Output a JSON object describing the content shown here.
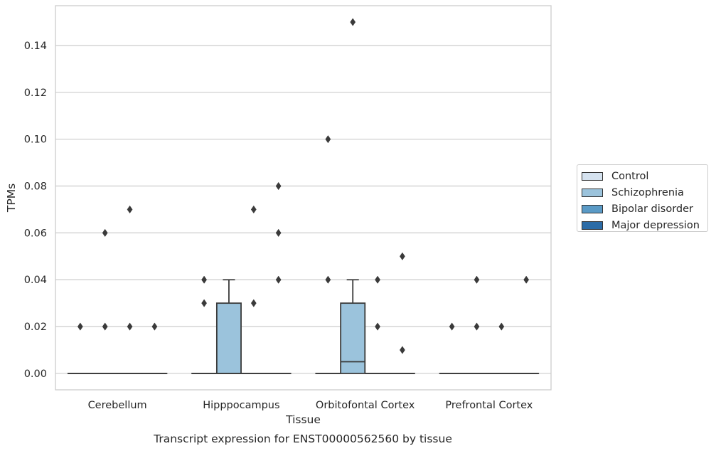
{
  "chart_data": {
    "type": "box",
    "title": "",
    "xlabel": "Tissue",
    "ylabel": "TPMs",
    "caption": "Transcript expression for ENST00000562560 by tissue",
    "categories": [
      "Cerebellum",
      "Hipppocampus",
      "Orbitofontal Cortex",
      "Prefrontal Cortex"
    ],
    "y_ticks": [
      "0.00",
      "0.02",
      "0.04",
      "0.06",
      "0.08",
      "0.10",
      "0.12",
      "0.14"
    ],
    "ylim": [
      -0.007,
      0.157
    ],
    "grid": "horizontal",
    "legend_position": "right",
    "series": [
      {
        "name": "Control",
        "color": "#d5e2ef",
        "boxes": [
          {
            "category": "Cerebellum",
            "q1": 0,
            "median": 0,
            "q3": 0,
            "whisker_low": 0,
            "whisker_high": 0,
            "outliers": [
              0.02
            ]
          },
          {
            "category": "Hipppocampus",
            "q1": 0,
            "median": 0,
            "q3": 0,
            "whisker_low": 0,
            "whisker_high": 0,
            "outliers": [
              0.03,
              0.04
            ]
          },
          {
            "category": "Orbitofontal Cortex",
            "q1": 0,
            "median": 0,
            "q3": 0,
            "whisker_low": 0,
            "whisker_high": 0,
            "outliers": [
              0.04,
              0.1
            ]
          },
          {
            "category": "Prefrontal Cortex",
            "q1": 0,
            "median": 0,
            "q3": 0,
            "whisker_low": 0,
            "whisker_high": 0,
            "outliers": [
              0.02
            ]
          }
        ]
      },
      {
        "name": "Schizophrenia",
        "color": "#9bc3dc",
        "boxes": [
          {
            "category": "Cerebellum",
            "q1": 0,
            "median": 0,
            "q3": 0,
            "whisker_low": 0,
            "whisker_high": 0,
            "outliers": [
              0.02,
              0.06
            ]
          },
          {
            "category": "Hipppocampus",
            "q1": 0,
            "median": 0,
            "q3": 0.03,
            "whisker_low": 0,
            "whisker_high": 0.04,
            "outliers": []
          },
          {
            "category": "Orbitofontal Cortex",
            "q1": 0,
            "median": 0.005,
            "q3": 0.03,
            "whisker_low": 0,
            "whisker_high": 0.04,
            "outliers": [
              0.15
            ]
          },
          {
            "category": "Prefrontal Cortex",
            "q1": 0,
            "median": 0,
            "q3": 0,
            "whisker_low": 0,
            "whisker_high": 0,
            "outliers": [
              0.02,
              0.04
            ]
          }
        ]
      },
      {
        "name": "Bipolar disorder",
        "color": "#5a9ac6",
        "boxes": [
          {
            "category": "Cerebellum",
            "q1": 0,
            "median": 0,
            "q3": 0,
            "whisker_low": 0,
            "whisker_high": 0,
            "outliers": [
              0.02,
              0.07
            ]
          },
          {
            "category": "Hipppocampus",
            "q1": 0,
            "median": 0,
            "q3": 0,
            "whisker_low": 0,
            "whisker_high": 0,
            "outliers": [
              0.03,
              0.07
            ]
          },
          {
            "category": "Orbitofontal Cortex",
            "q1": 0,
            "median": 0,
            "q3": 0,
            "whisker_low": 0,
            "whisker_high": 0,
            "outliers": [
              0.02,
              0.04
            ]
          },
          {
            "category": "Prefrontal Cortex",
            "q1": 0,
            "median": 0,
            "q3": 0,
            "whisker_low": 0,
            "whisker_high": 0,
            "outliers": [
              0.02
            ]
          }
        ]
      },
      {
        "name": "Major depression",
        "color": "#2c6ca7",
        "boxes": [
          {
            "category": "Cerebellum",
            "q1": 0,
            "median": 0,
            "q3": 0,
            "whisker_low": 0,
            "whisker_high": 0,
            "outliers": [
              0.02
            ]
          },
          {
            "category": "Hipppocampus",
            "q1": 0,
            "median": 0,
            "q3": 0,
            "whisker_low": 0,
            "whisker_high": 0,
            "outliers": [
              0.04,
              0.06,
              0.08
            ]
          },
          {
            "category": "Orbitofontal Cortex",
            "q1": 0,
            "median": 0,
            "q3": 0,
            "whisker_low": 0,
            "whisker_high": 0,
            "outliers": [
              0.01,
              0.05
            ]
          },
          {
            "category": "Prefrontal Cortex",
            "q1": 0,
            "median": 0,
            "q3": 0,
            "whisker_low": 0,
            "whisker_high": 0,
            "outliers": [
              0.04
            ]
          }
        ]
      }
    ]
  }
}
